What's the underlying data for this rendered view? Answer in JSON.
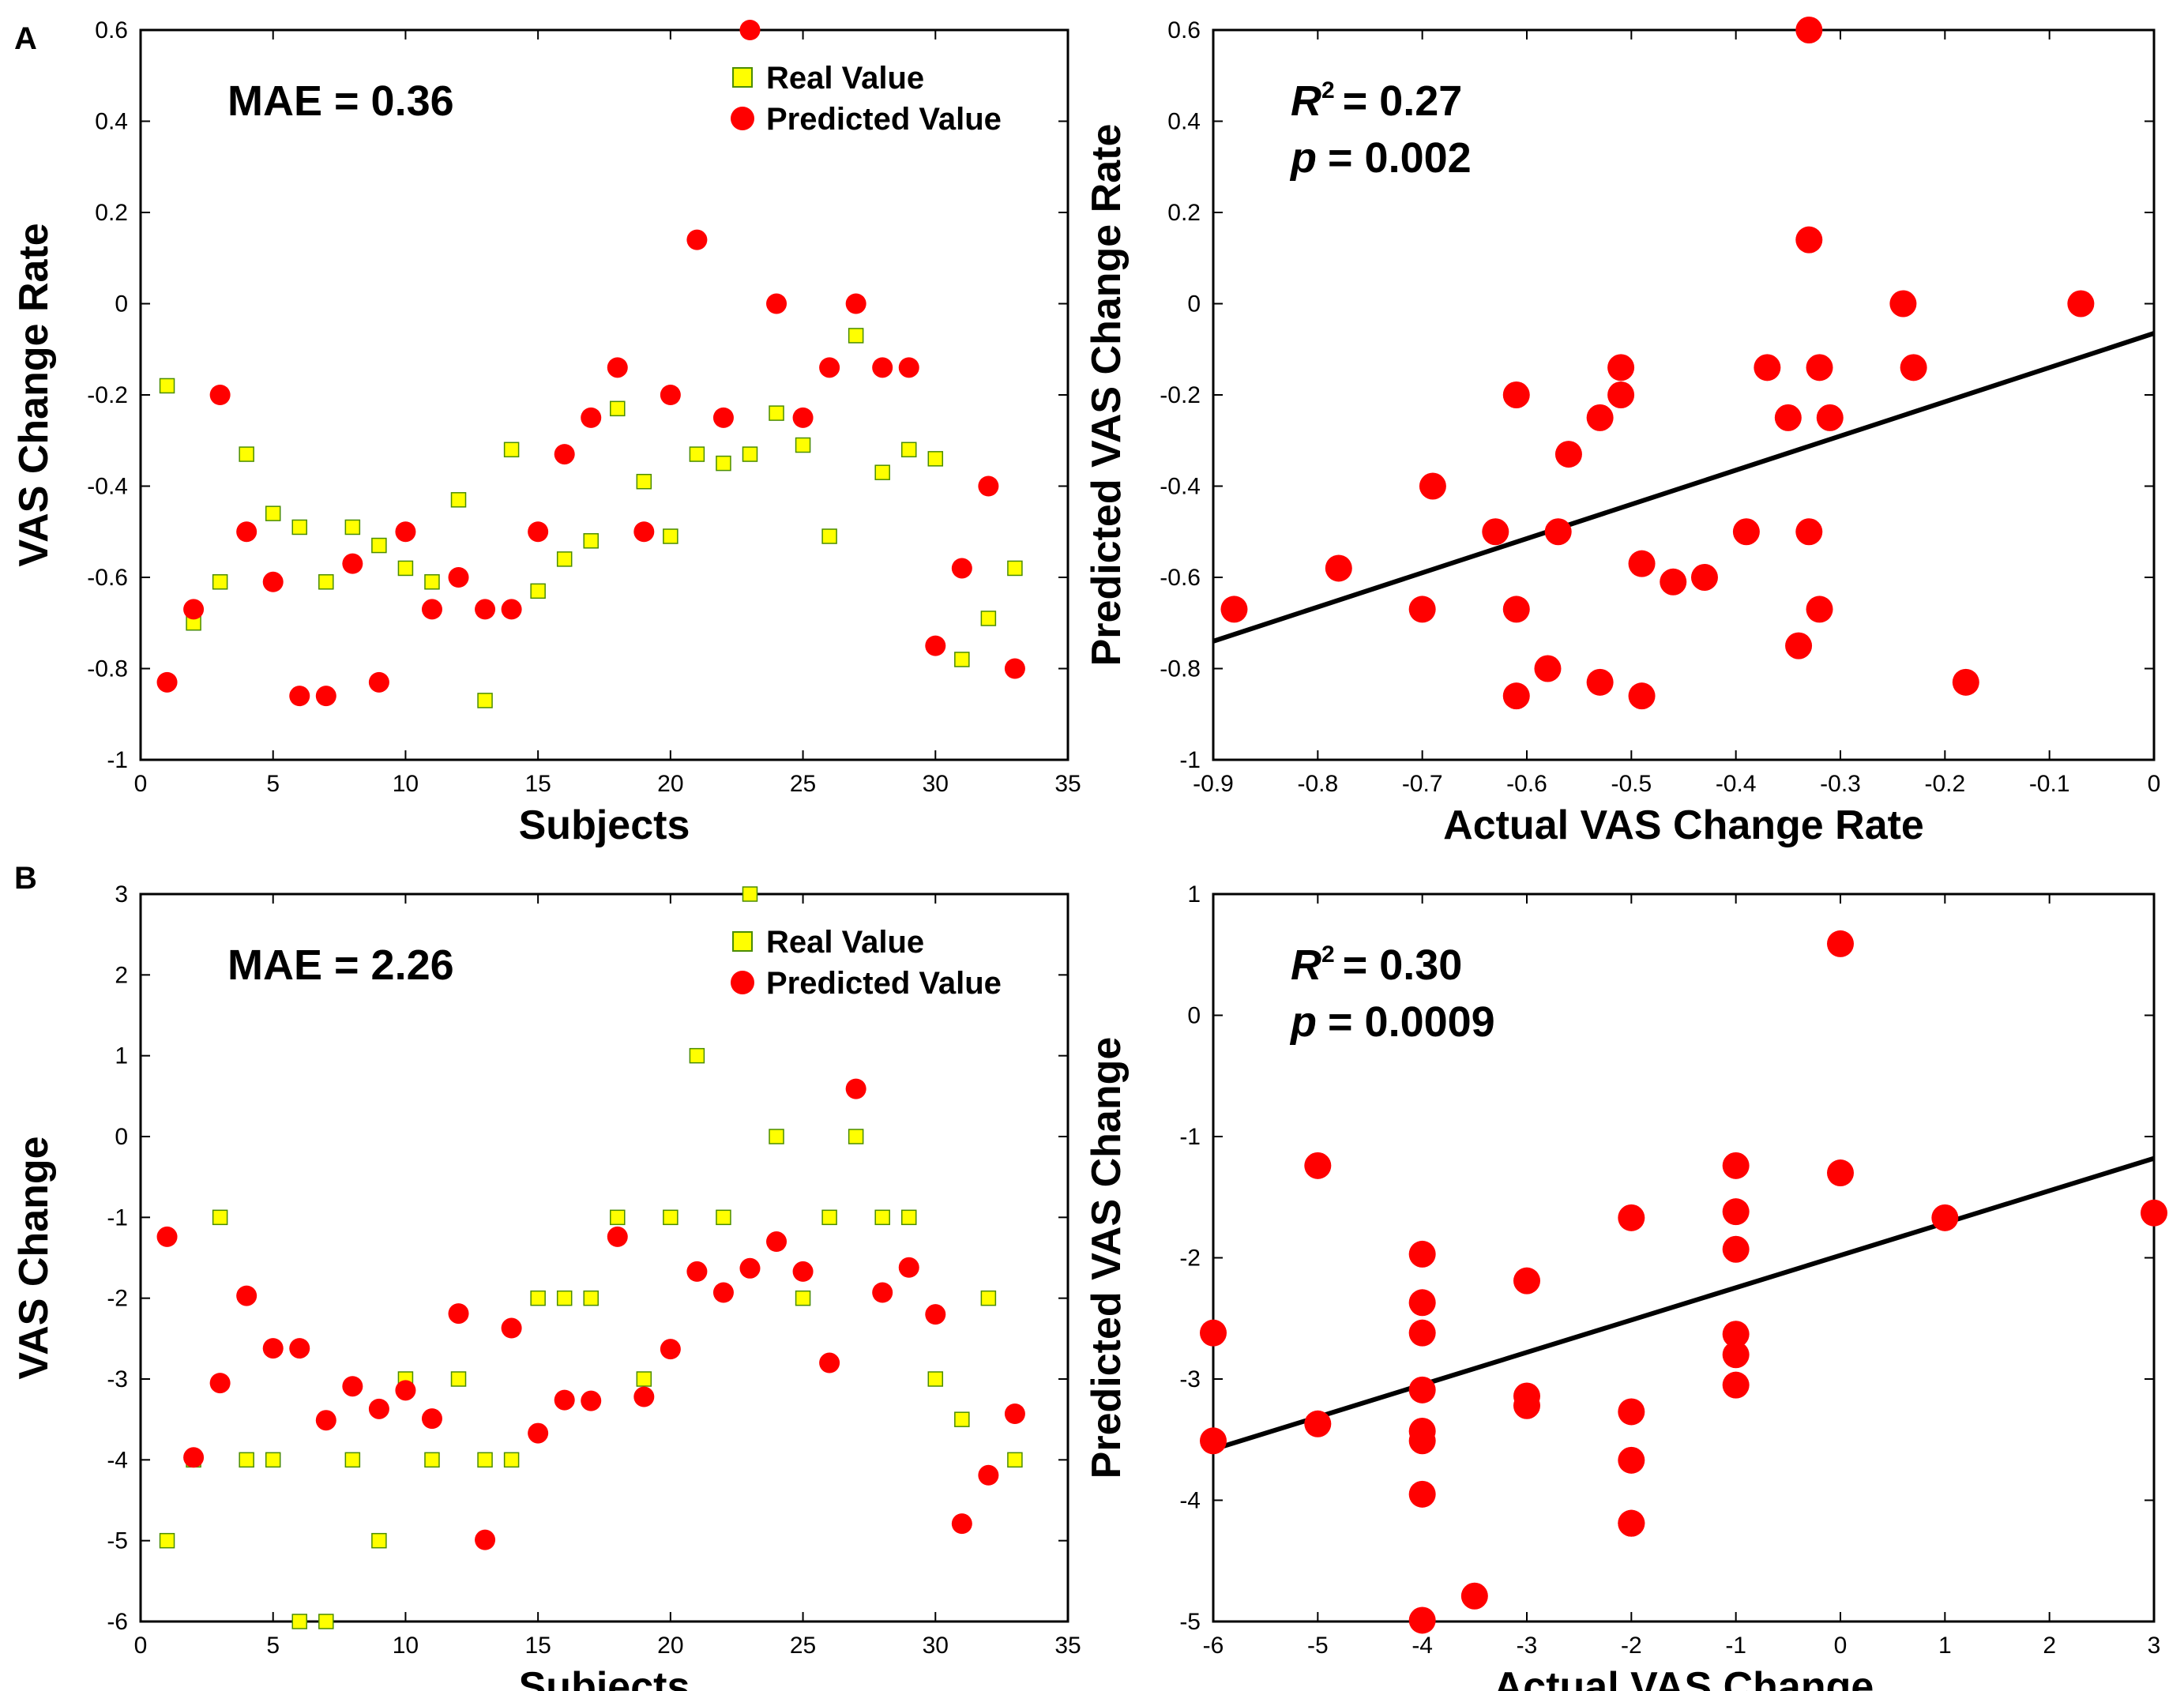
{
  "panels": {
    "A": {
      "letter": "A"
    },
    "B": {
      "letter": "B"
    }
  },
  "colors": {
    "predicted": "#ff0000",
    "real_fill": "#ffff00",
    "real_edge": "#4a8c00",
    "axis": "#000000",
    "fit_line": "#000000"
  },
  "chart_data": [
    {
      "id": "A-left",
      "type": "scatter",
      "xlabel": "Subjects",
      "ylabel": "VAS Change Rate",
      "xlim": [
        0,
        35
      ],
      "ylim": [
        -1,
        0.6
      ],
      "xticks": [
        "0",
        "5",
        "10",
        "15",
        "20",
        "25",
        "30",
        "35"
      ],
      "yticks": [
        "-1",
        "-0.8",
        "-0.6",
        "-0.4",
        "-0.2",
        "0",
        "0.2",
        "0.4",
        "0.6"
      ],
      "annotation": "MAE = 0.36",
      "legend": {
        "real": "Real Value",
        "predicted": "Predicted Value",
        "position": "top-right"
      },
      "series": [
        {
          "name": "Real Value",
          "marker": "square",
          "x": [
            1,
            2,
            3,
            4,
            5,
            6,
            7,
            8,
            9,
            10,
            11,
            12,
            13,
            14,
            15,
            16,
            17,
            18,
            19,
            20,
            21,
            22,
            23,
            24,
            25,
            26,
            27,
            28,
            29,
            30,
            31,
            32,
            33
          ],
          "values": [
            -0.18,
            -0.7,
            -0.61,
            -0.33,
            -0.46,
            -0.49,
            -0.61,
            -0.49,
            -0.53,
            -0.58,
            -0.61,
            -0.43,
            -0.87,
            -0.32,
            -0.63,
            -0.56,
            -0.52,
            -0.23,
            -0.39,
            -0.51,
            -0.33,
            -0.35,
            -0.33,
            -0.24,
            -0.31,
            -0.51,
            -0.07,
            -0.37,
            -0.32,
            -0.34,
            -0.78,
            -0.69,
            -0.58
          ]
        },
        {
          "name": "Predicted Value",
          "marker": "circle",
          "x": [
            1,
            2,
            3,
            4,
            5,
            6,
            7,
            8,
            9,
            10,
            11,
            12,
            13,
            14,
            15,
            16,
            17,
            18,
            19,
            20,
            21,
            22,
            23,
            24,
            25,
            26,
            27,
            28,
            29,
            30,
            31,
            32,
            33
          ],
          "values": [
            -0.83,
            -0.67,
            -0.2,
            -0.5,
            -0.61,
            -0.86,
            -0.86,
            -0.57,
            -0.83,
            -0.5,
            -0.67,
            -0.6,
            -0.67,
            -0.67,
            -0.5,
            -0.33,
            -0.25,
            -0.14,
            -0.5,
            -0.2,
            0.14,
            -0.25,
            0.6,
            0.0,
            -0.25,
            -0.14,
            0.0,
            -0.14,
            -0.14,
            -0.75,
            -0.58,
            -0.4,
            -0.8
          ]
        }
      ]
    },
    {
      "id": "A-right",
      "type": "scatter",
      "xlabel": "Actual VAS Change Rate",
      "ylabel": "Predicted VAS Change Rate",
      "xlim": [
        -0.9,
        0
      ],
      "ylim": [
        -1,
        0.6
      ],
      "xticks": [
        "-0.9",
        "-0.8",
        "-0.7",
        "-0.6",
        "-0.5",
        "-0.4",
        "-0.3",
        "-0.2",
        "-0.1",
        "0"
      ],
      "yticks": [
        "-1",
        "-0.8",
        "-0.6",
        "-0.4",
        "-0.2",
        "0",
        "0.2",
        "0.4",
        "0.6"
      ],
      "stat_r2_label": "R",
      "stat_r2_sup": "2",
      "stat_r2_value": "= 0.27",
      "stat_p_label": "p",
      "stat_p_value": "= 0.002",
      "fit_line": {
        "x": [
          -0.9,
          0
        ],
        "y": [
          -0.74,
          -0.065
        ]
      },
      "series": [
        {
          "name": "Predicted vs Actual",
          "marker": "circle",
          "x": [
            -0.88,
            -0.78,
            -0.7,
            -0.69,
            -0.63,
            -0.61,
            -0.61,
            -0.61,
            -0.58,
            -0.57,
            -0.56,
            -0.53,
            -0.53,
            -0.51,
            -0.51,
            -0.49,
            -0.49,
            -0.46,
            -0.43,
            -0.39,
            -0.37,
            -0.35,
            -0.34,
            -0.33,
            -0.33,
            -0.33,
            -0.32,
            -0.32,
            -0.31,
            -0.24,
            -0.23,
            -0.18,
            -0.07
          ],
          "values": [
            -0.67,
            -0.58,
            -0.67,
            -0.4,
            -0.5,
            -0.2,
            -0.67,
            -0.86,
            -0.8,
            -0.5,
            -0.33,
            -0.25,
            -0.83,
            -0.2,
            -0.14,
            -0.57,
            -0.86,
            -0.61,
            -0.6,
            -0.5,
            -0.14,
            -0.25,
            -0.75,
            0.6,
            0.14,
            -0.5,
            -0.14,
            -0.67,
            -0.25,
            0.0,
            -0.14,
            -0.83,
            0.0
          ]
        }
      ]
    },
    {
      "id": "B-left",
      "type": "scatter",
      "xlabel": "Subjects",
      "ylabel": "VAS Change",
      "xlim": [
        0,
        35
      ],
      "ylim": [
        -6,
        3
      ],
      "xticks": [
        "0",
        "5",
        "10",
        "15",
        "20",
        "25",
        "30",
        "35"
      ],
      "yticks": [
        "-6",
        "-5",
        "-4",
        "-3",
        "-2",
        "-1",
        "0",
        "1",
        "2",
        "3"
      ],
      "annotation": "MAE = 2.26",
      "legend": {
        "real": "Real Value",
        "predicted": "Predicted Value",
        "position": "top-right"
      },
      "series": [
        {
          "name": "Real Value",
          "marker": "square",
          "x": [
            1,
            2,
            3,
            4,
            5,
            6,
            7,
            8,
            9,
            10,
            11,
            12,
            13,
            14,
            15,
            16,
            17,
            18,
            19,
            20,
            21,
            22,
            23,
            24,
            25,
            26,
            27,
            28,
            29,
            30,
            31,
            32,
            33
          ],
          "values": [
            -5,
            -4,
            -1,
            -4,
            -4,
            -6,
            -6,
            -4,
            -5,
            -3,
            -4,
            -3,
            -4,
            -4,
            -2,
            -2,
            -2,
            -1,
            -3,
            -1,
            1,
            -1,
            3,
            0,
            -2,
            -1,
            0,
            -1,
            -1,
            -3,
            -3.5,
            -2,
            -4
          ]
        },
        {
          "name": "Predicted Value",
          "marker": "circle",
          "x": [
            1,
            2,
            3,
            4,
            5,
            6,
            7,
            8,
            9,
            10,
            11,
            12,
            13,
            14,
            15,
            16,
            17,
            18,
            19,
            20,
            21,
            22,
            23,
            24,
            25,
            26,
            27,
            28,
            29,
            30,
            31,
            32,
            33
          ],
          "values": [
            -1.24,
            -3.97,
            -3.05,
            -1.97,
            -2.62,
            -2.62,
            -3.51,
            -3.09,
            -3.37,
            -3.14,
            -3.49,
            -2.19,
            -4.99,
            -2.37,
            -3.67,
            -3.26,
            -3.27,
            -1.24,
            -3.22,
            -2.63,
            -1.67,
            -1.93,
            -1.63,
            -1.3,
            -1.67,
            -2.8,
            0.59,
            -1.93,
            -1.62,
            -2.2,
            -4.79,
            -4.19,
            -3.43
          ]
        }
      ]
    },
    {
      "id": "B-right",
      "type": "scatter",
      "xlabel": "Actual VAS Change",
      "ylabel": "Predicted VAS Change",
      "xlim": [
        -6,
        3
      ],
      "ylim": [
        -5,
        1
      ],
      "xticks": [
        "-6",
        "-5",
        "-4",
        "-3",
        "-2",
        "-1",
        "0",
        "1",
        "2",
        "3"
      ],
      "yticks": [
        "-5",
        "-4",
        "-3",
        "-2",
        "-1",
        "0",
        "1"
      ],
      "stat_r2_label": "R",
      "stat_r2_sup": "2",
      "stat_r2_value": "= 0.30",
      "stat_p_label": "p",
      "stat_p_value": "= 0.0009",
      "fit_line": {
        "x": [
          -6,
          3
        ],
        "y": [
          -3.58,
          -1.18
        ]
      },
      "series": [
        {
          "name": "Predicted vs Actual",
          "marker": "circle",
          "x": [
            -6,
            -6,
            -5,
            -5,
            -4,
            -4,
            -4,
            -4,
            -4,
            -4,
            -4,
            -4,
            -3.5,
            -3,
            -3,
            -3,
            -2,
            -2,
            -2,
            -2,
            -2,
            -1,
            -1,
            -1,
            -1,
            -1,
            -1,
            0,
            0,
            1,
            3
          ],
          "values": [
            -2.62,
            -3.51,
            -1.24,
            -3.37,
            -1.97,
            -2.37,
            -2.62,
            -3.09,
            -3.43,
            -3.51,
            -3.95,
            -4.99,
            -4.79,
            -2.19,
            -3.14,
            -3.22,
            -1.67,
            -3.27,
            -3.67,
            -4.19,
            -4.19,
            -1.24,
            -1.62,
            -1.93,
            -2.63,
            -2.8,
            -3.05,
            0.59,
            -1.3,
            -1.67,
            -1.63
          ]
        }
      ]
    }
  ]
}
